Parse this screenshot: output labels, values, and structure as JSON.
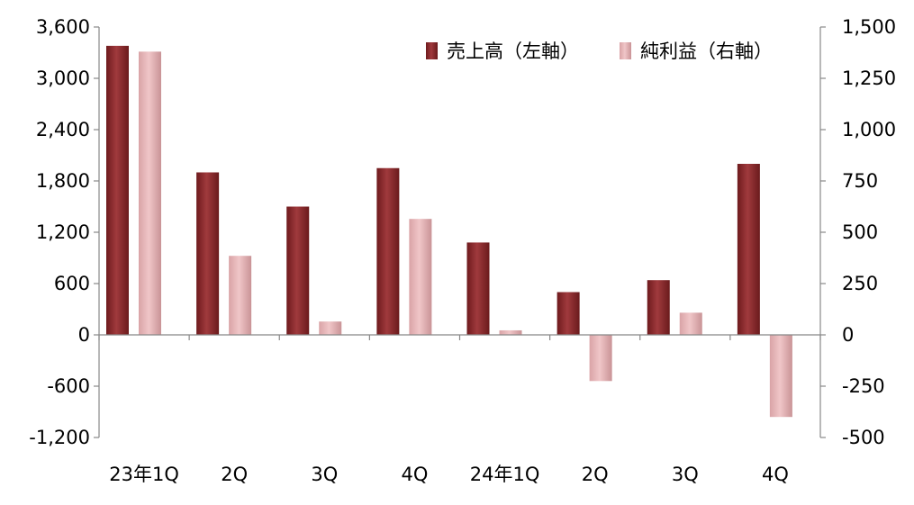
{
  "chart_data": {
    "type": "bar",
    "categories": [
      "23年1Q",
      "2Q",
      "3Q",
      "4Q",
      "24年1Q",
      "2Q",
      "3Q",
      "4Q"
    ],
    "series": [
      {
        "name": "売上高（左軸）",
        "axis": "left",
        "color": "#8b2b2e",
        "values": [
          3380,
          1900,
          1500,
          1950,
          1080,
          500,
          640,
          2000
        ]
      },
      {
        "name": "純利益（右軸）",
        "axis": "right",
        "color": "#e2b0b2",
        "values": [
          1380,
          385,
          65,
          565,
          22,
          -225,
          108,
          -400
        ]
      }
    ],
    "left_axis": {
      "ylim": [
        -1200,
        3600
      ],
      "ticks": [
        3600,
        3000,
        2400,
        1800,
        1200,
        600,
        0,
        -600,
        -1200
      ],
      "tick_labels": [
        "3,600",
        "3,000",
        "2,400",
        "1,800",
        "1,200",
        "600",
        "0",
        "-600",
        "-1,200"
      ]
    },
    "right_axis": {
      "ylim": [
        -500,
        1500
      ],
      "ticks": [
        1500,
        1250,
        1000,
        750,
        500,
        250,
        0,
        -250,
        -500
      ],
      "tick_labels": [
        "1,500",
        "1,250",
        "1,000",
        "750",
        "500",
        "250",
        "0",
        "-250",
        "-500"
      ]
    },
    "negative_label_color": "#e00000",
    "legend_position": "top-right",
    "grid": false
  }
}
